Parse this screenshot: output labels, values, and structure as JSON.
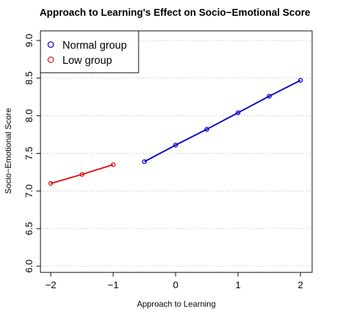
{
  "chart_data": {
    "type": "line",
    "title": "Approach to Learning's Effect on Socio−Emotional Score",
    "xlabel": "Approach to Learning",
    "ylabel": "Socio−Emotional Score",
    "xlim": [
      -2.0,
      2.0
    ],
    "ylim": [
      6.0,
      9.0
    ],
    "x_ticks": [
      "−2",
      "−1",
      "0",
      "1",
      "2"
    ],
    "y_ticks": [
      "6.0",
      "6.5",
      "7.0",
      "7.5",
      "8.0",
      "8.5",
      "9.0"
    ],
    "grid": "horizontal dotted",
    "legend_position": "top-left",
    "series": [
      {
        "name": "Normal group",
        "color": "#0000CC",
        "x": [
          -0.5,
          0,
          0.5,
          1,
          1.5,
          2
        ],
        "y": [
          7.39,
          7.61,
          7.82,
          8.04,
          8.26,
          8.47
        ]
      },
      {
        "name": "Low group",
        "color": "#DD1111",
        "x": [
          -2,
          -1.5,
          -1
        ],
        "y": [
          7.1,
          7.22,
          7.35
        ]
      }
    ]
  }
}
